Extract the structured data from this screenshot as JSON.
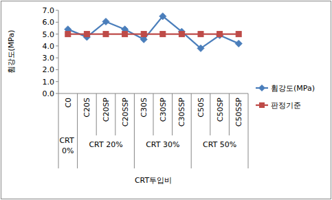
{
  "chart_data": {
    "type": "line",
    "y_label": "휨강도(MPa)",
    "x_label": "CRT투입비",
    "categories": [
      "C0",
      "C20S",
      "C20SP",
      "C20SSP",
      "C30S",
      "C30SP",
      "C30SSP",
      "C50S",
      "C50SP",
      "C50SSP"
    ],
    "x_groups": [
      {
        "label": "CRT 0%",
        "count": 1
      },
      {
        "label": "CRT 20%",
        "count": 3
      },
      {
        "label": "CRT 30%",
        "count": 3
      },
      {
        "label": "CRT 50%",
        "count": 3
      }
    ],
    "series": [
      {
        "name": "휨강도(MPa)",
        "color": "#4a7ebb",
        "marker": "diamond",
        "values": [
          5.4,
          4.75,
          6.05,
          5.4,
          4.55,
          6.5,
          5.2,
          3.8,
          4.9,
          4.2
        ]
      },
      {
        "name": "판정기준",
        "color": "#be4b48",
        "marker": "square",
        "values": [
          5.0,
          5.0,
          5.0,
          5.0,
          5.0,
          5.0,
          5.0,
          5.0,
          5.0,
          5.0
        ]
      }
    ],
    "ylim": [
      0,
      7
    ],
    "yticks": [
      {
        "value": 0,
        "label": "0.0"
      },
      {
        "value": 1,
        "label": "1.0"
      },
      {
        "value": 2,
        "label": "2.0"
      },
      {
        "value": 3,
        "label": "3.0"
      },
      {
        "value": 4,
        "label": "4.0"
      },
      {
        "value": 5,
        "label": "5.0"
      },
      {
        "value": 6,
        "label": "6.0"
      },
      {
        "value": 7,
        "label": "7.0"
      }
    ],
    "grid": false,
    "legend": "right"
  }
}
